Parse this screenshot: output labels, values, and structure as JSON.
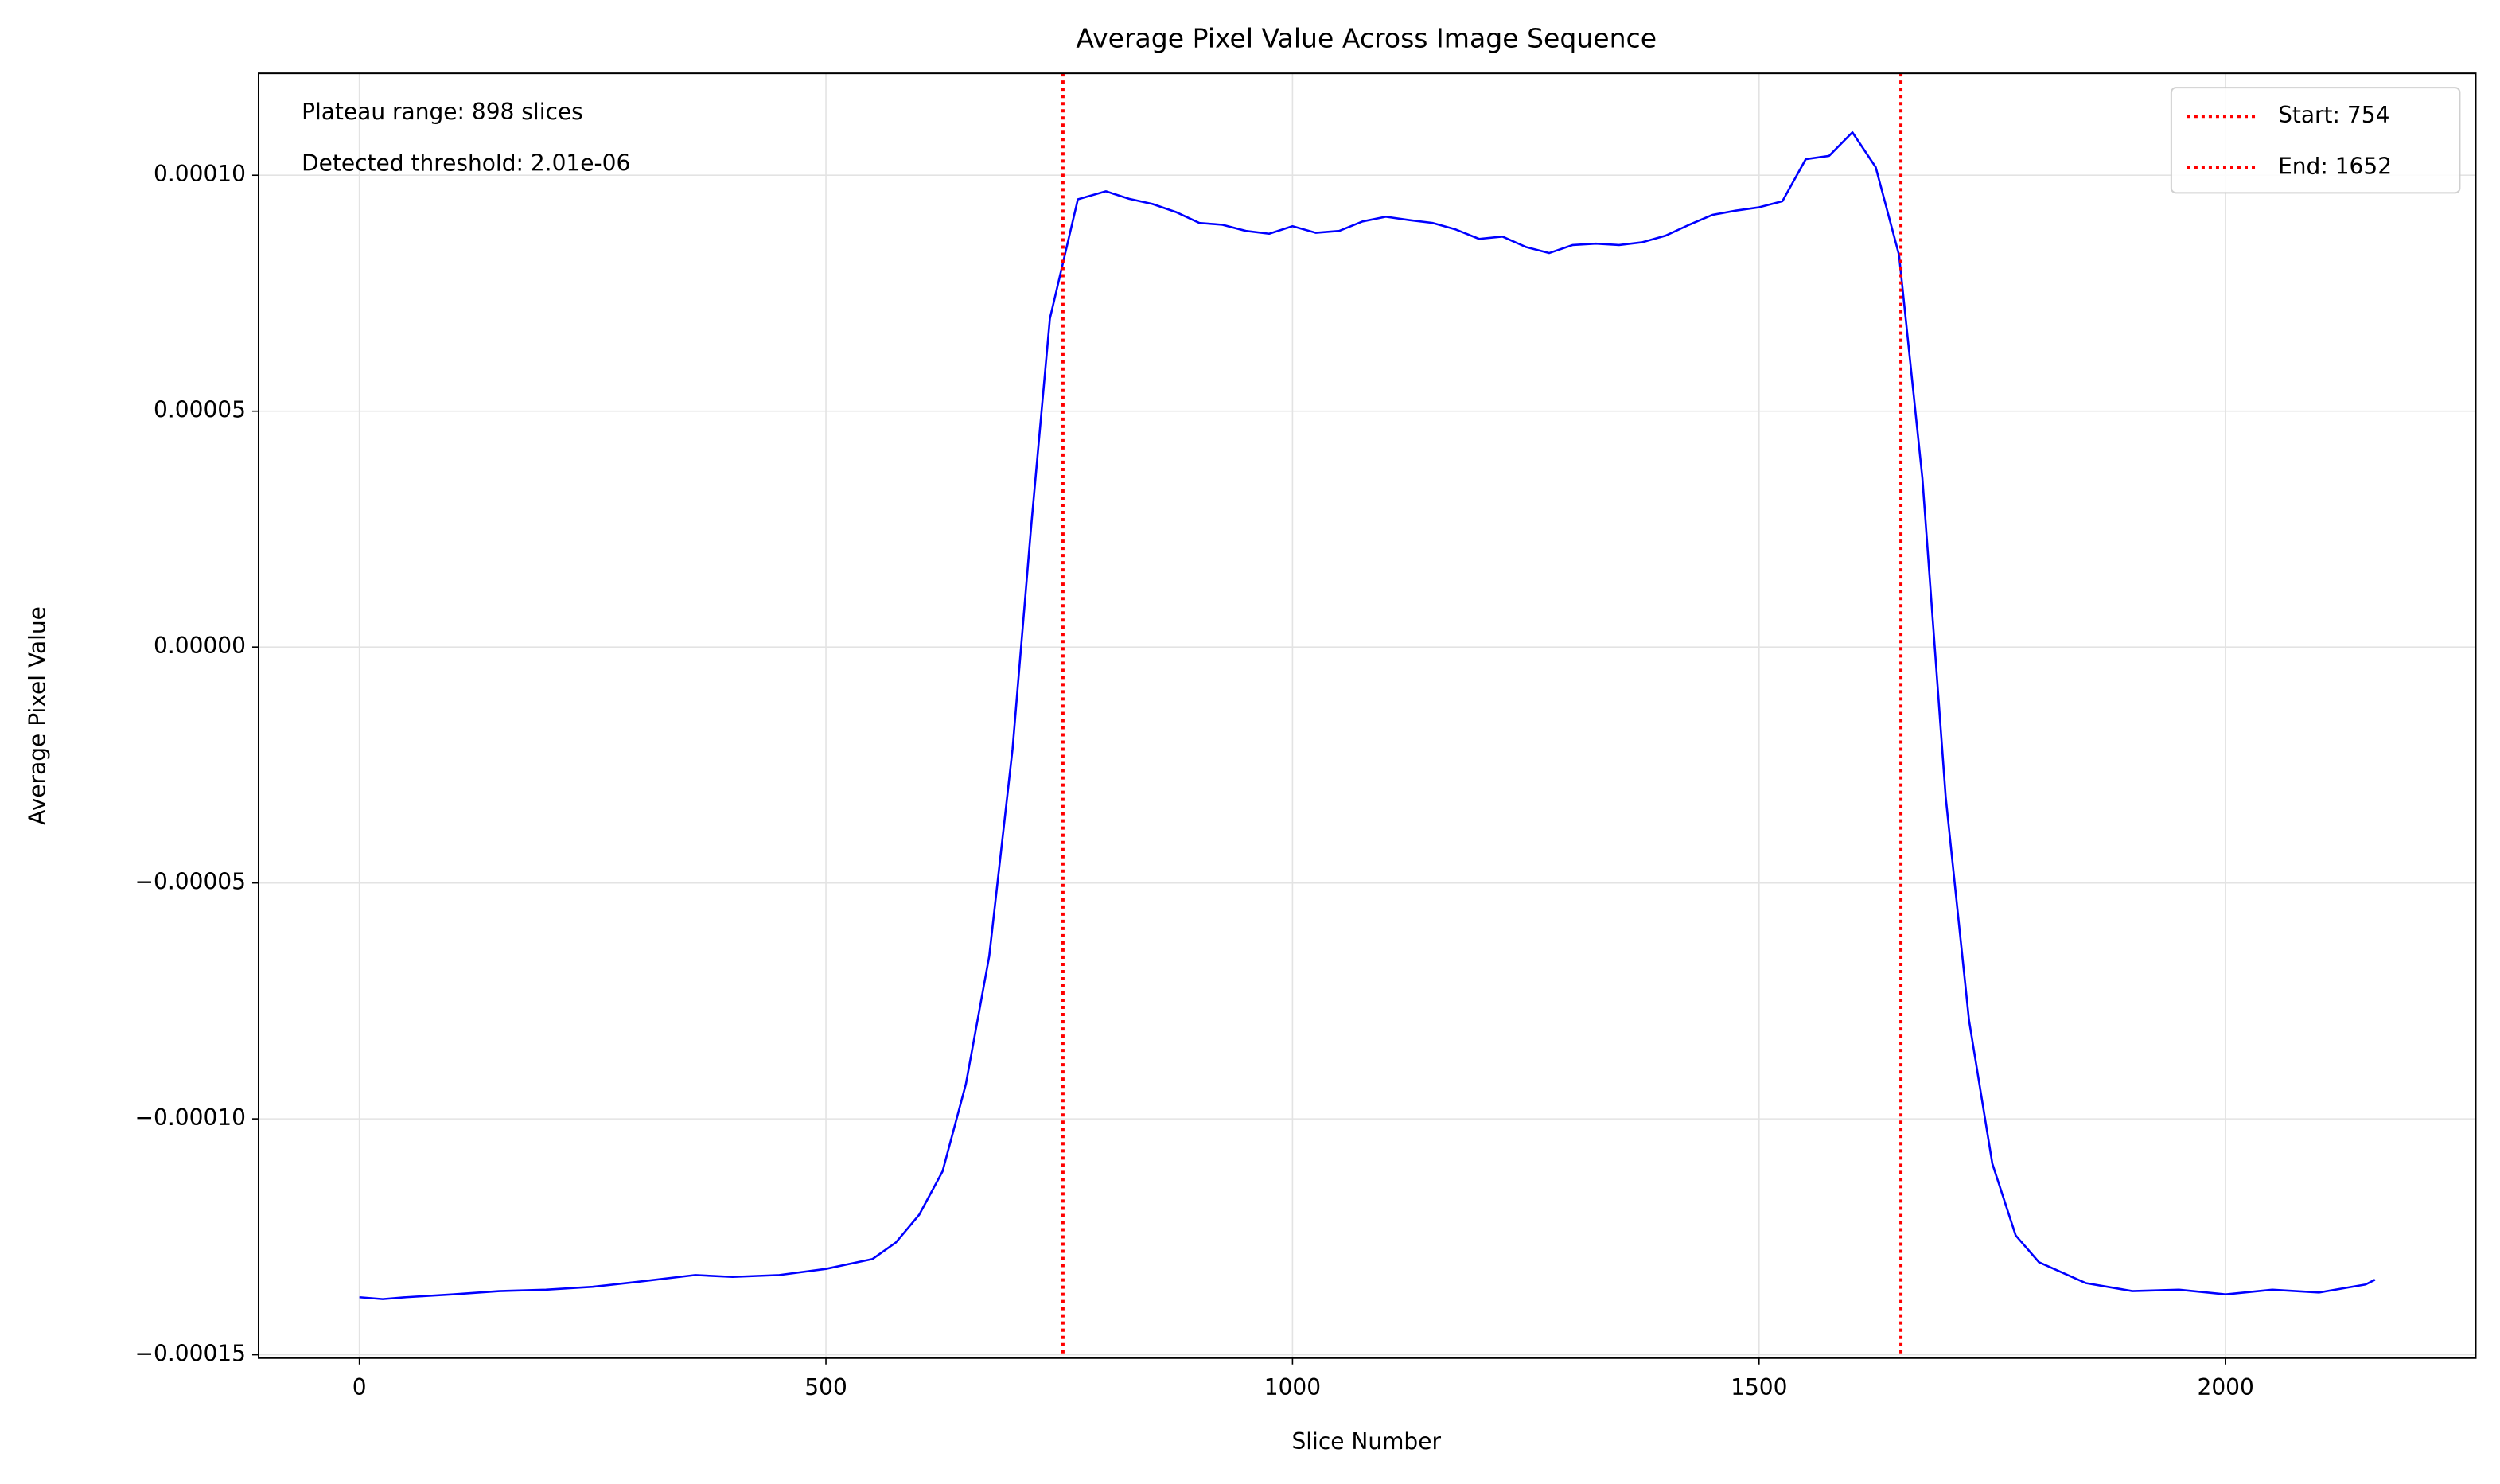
{
  "chart_data": {
    "type": "line",
    "title": "Average Pixel Value Across Image Sequence",
    "x_label": "Slice Number",
    "y_label": "Average Pixel Value",
    "annotations": [
      "Plateau range: 898 slices",
      "Detected threshold: 2.01e-06"
    ],
    "x": [
      0,
      25,
      50,
      100,
      150,
      200,
      250,
      300,
      360,
      400,
      450,
      500,
      550,
      575,
      600,
      625,
      650,
      675,
      700,
      720,
      740,
      754,
      770,
      800,
      825,
      850,
      875,
      900,
      925,
      950,
      975,
      1000,
      1025,
      1050,
      1075,
      1100,
      1125,
      1150,
      1175,
      1200,
      1225,
      1250,
      1275,
      1300,
      1325,
      1350,
      1375,
      1400,
      1425,
      1450,
      1475,
      1500,
      1525,
      1550,
      1575,
      1600,
      1625,
      1650,
      1675,
      1700,
      1725,
      1750,
      1775,
      1800,
      1850,
      1900,
      1950,
      2000,
      2050,
      2100,
      2150,
      2160
    ],
    "series": [
      {
        "name": "Average Pixel Value",
        "color": "#0000ff",
        "values": [
          -0.0001378,
          -0.0001382,
          -0.0001378,
          -0.0001372,
          -0.0001365,
          -0.0001362,
          -0.0001356,
          -0.0001345,
          -0.0001331,
          -0.0001335,
          -0.0001331,
          -0.0001318,
          -0.0001297,
          -0.0001262,
          -0.0001203,
          -0.0001111,
          -9.26e-05,
          -6.55e-05,
          -2.16e-05,
          2.57e-05,
          6.96e-05,
          8.14e-05,
          9.49e-05,
          9.66e-05,
          9.5e-05,
          9.39e-05,
          9.22e-05,
          8.99e-05,
          8.95e-05,
          8.82e-05,
          8.76e-05,
          8.92e-05,
          8.78e-05,
          8.82e-05,
          9.02e-05,
          9.12e-05,
          9.05e-05,
          8.99e-05,
          8.85e-05,
          8.65e-05,
          8.7e-05,
          8.48e-05,
          8.35e-05,
          8.52e-05,
          8.55e-05,
          8.52e-05,
          8.58e-05,
          8.72e-05,
          8.95e-05,
          9.16e-05,
          9.25e-05,
          9.32e-05,
          9.45e-05,
          0.0001034,
          0.0001041,
          0.0001091,
          0.0001017,
          8.31e-05,
          3.58e-05,
          -3.18e-05,
          -7.91e-05,
          -0.0001095,
          -0.0001247,
          -0.0001304,
          -0.0001348,
          -0.0001365,
          -0.0001362,
          -0.0001372,
          -0.0001362,
          -0.0001368,
          -0.0001351,
          -0.0001341
        ]
      }
    ],
    "vlines": [
      {
        "name": "Start: 754",
        "x": 754,
        "color": "#ff0000"
      },
      {
        "name": "End: 1652",
        "x": 1652,
        "color": "#ff0000"
      }
    ],
    "xlim": [
      -108,
      2268
    ],
    "ylim": [
      -0.0001507,
      0.0001216
    ],
    "xticks": [
      0,
      500,
      1000,
      1500,
      2000
    ],
    "yticks": [
      {
        "value": -0.00015,
        "label": "−0.00015"
      },
      {
        "value": -0.0001,
        "label": "−0.00010"
      },
      {
        "value": -5e-05,
        "label": "−0.00005"
      },
      {
        "value": 0,
        "label": "0.00000"
      },
      {
        "value": 5e-05,
        "label": "0.00005"
      },
      {
        "value": 0.0001,
        "label": "0.00010"
      }
    ],
    "grid": true,
    "legend": "upper right"
  }
}
